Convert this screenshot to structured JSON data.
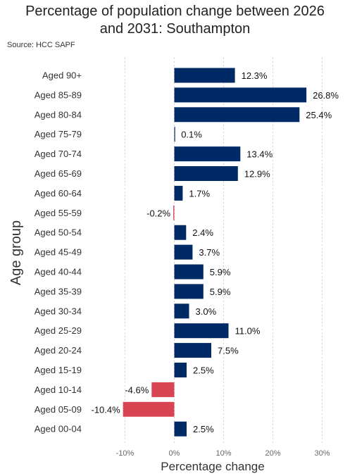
{
  "title_line1": "Percentage of population change between 2026",
  "title_line2": "and 2031: Southampton",
  "source": "Source: HCC SAPF",
  "chart_data": {
    "type": "bar",
    "orientation": "horizontal",
    "title": "Percentage of population change between 2026 and 2031: Southampton",
    "xlabel": "Percentage change",
    "ylabel": "Age group",
    "xlim": [
      -13,
      30
    ],
    "xticks": [
      -10,
      0,
      10,
      20,
      30
    ],
    "xtick_labels": [
      "-10%",
      "0%",
      "10%",
      "20%",
      "30%"
    ],
    "grid": "vertical dotted",
    "colors": {
      "positive": "#002a66",
      "negative": "#d94452"
    },
    "categories": [
      "Aged 90+",
      "Aged 85-89",
      "Aged 80-84",
      "Aged 75-79",
      "Aged 70-74",
      "Aged 65-69",
      "Aged 60-64",
      "Aged 55-59",
      "Aged 50-54",
      "Aged 45-49",
      "Aged 40-44",
      "Aged 35-39",
      "Aged 30-34",
      "Aged 25-29",
      "Aged 20-24",
      "Aged 15-19",
      "Aged 10-14",
      "Aged 05-09",
      "Aged 00-04"
    ],
    "values": [
      12.3,
      26.8,
      25.4,
      0.1,
      13.4,
      12.9,
      1.7,
      -0.2,
      2.4,
      3.7,
      5.9,
      5.9,
      3.0,
      11.0,
      7.5,
      2.5,
      -4.6,
      -10.4,
      2.5
    ],
    "value_labels": [
      "12.3%",
      "26.8%",
      "25.4%",
      "0.1%",
      "13.4%",
      "12.9%",
      "1.7%",
      "-0.2%",
      "2.4%",
      "3.7%",
      "5.9%",
      "5.9%",
      "3.0%",
      "11.0%",
      "7.5%",
      "2.5%",
      "-4.6%",
      "-10.4%",
      "2.5%"
    ]
  }
}
